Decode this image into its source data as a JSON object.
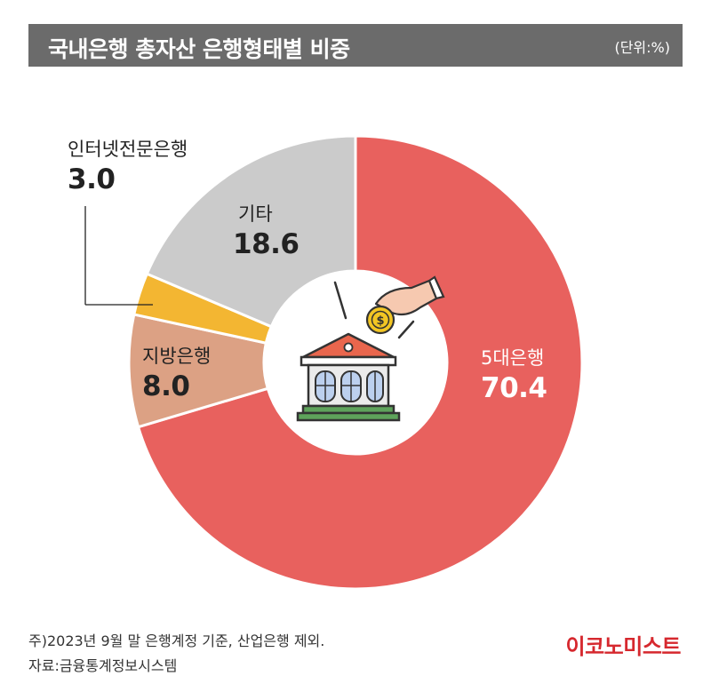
{
  "header": {
    "title": "국내은행 총자산 은행형태별 비중",
    "unit": "(단위:%)"
  },
  "chart_data": {
    "type": "pie",
    "title": "국내은행 총자산 은행형태별 비중",
    "unit": "(단위:%)",
    "categories": [
      "5대은행",
      "지방은행",
      "인터넷전문은행",
      "기타"
    ],
    "values": [
      70.4,
      8.0,
      3.0,
      18.6
    ],
    "value_labels": [
      "70.4",
      "8.0",
      "3.0",
      "18.6"
    ],
    "colors": [
      "#e8615e",
      "#dca184",
      "#f3b632",
      "#cbcbcb"
    ],
    "donut": true
  },
  "footnotes": {
    "note": "주)2023년 9월 말 은행계정 기준, 산업은행 제외.",
    "source": "자료:금융통계정보시스템"
  },
  "brand": "이코노미스트",
  "center_icon": "bank-coin-icon"
}
